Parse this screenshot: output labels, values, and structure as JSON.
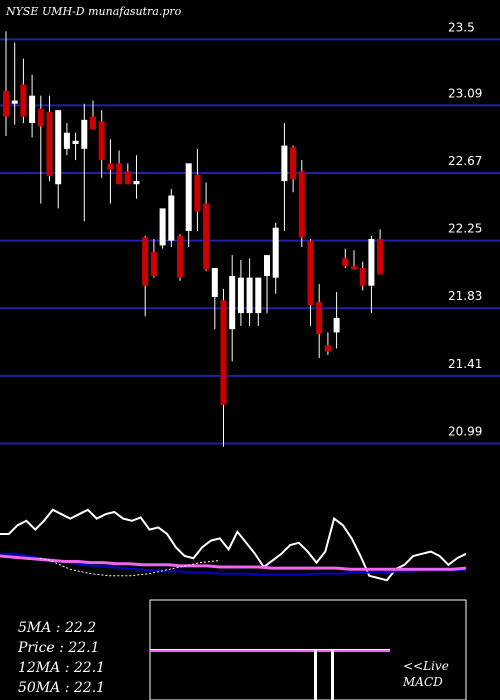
{
  "chart_data": [
    {
      "type": "candlestick",
      "title": "NYSE UMH-D munafasutra.pro",
      "ylim": [
        20.9,
        23.62
      ],
      "y_ticks": [
        "23.5",
        "23.09",
        "22.67",
        "22.25",
        "21.83",
        "21.41",
        "20.99"
      ],
      "grid": true,
      "colors": {
        "up": "#ffffff",
        "down": "#cc0000",
        "grid": "#2020a8",
        "background": "#000000"
      },
      "candles": [
        {
          "open": 23.18,
          "high": 23.55,
          "low": 22.9,
          "close": 23.02
        },
        {
          "open": 23.1,
          "high": 23.48,
          "low": 22.97,
          "close": 23.12
        },
        {
          "open": 23.22,
          "high": 23.38,
          "low": 22.98,
          "close": 23.02
        },
        {
          "open": 22.98,
          "high": 23.28,
          "low": 22.89,
          "close": 23.15
        },
        {
          "open": 23.07,
          "high": 23.15,
          "low": 22.48,
          "close": 22.96
        },
        {
          "open": 23.05,
          "high": 23.15,
          "low": 22.62,
          "close": 22.65
        },
        {
          "open": 22.6,
          "high": 23.06,
          "low": 22.45,
          "close": 23.06
        },
        {
          "open": 22.82,
          "high": 22.98,
          "low": 22.78,
          "close": 22.92
        },
        {
          "open": 22.85,
          "high": 22.92,
          "low": 22.75,
          "close": 22.87
        },
        {
          "open": 22.82,
          "high": 23.1,
          "low": 22.37,
          "close": 23.0
        },
        {
          "open": 23.02,
          "high": 23.12,
          "low": 22.94,
          "close": 22.94
        },
        {
          "open": 22.99,
          "high": 23.06,
          "low": 22.64,
          "close": 22.75
        },
        {
          "open": 22.73,
          "high": 22.88,
          "low": 22.48,
          "close": 22.69
        },
        {
          "open": 22.73,
          "high": 22.81,
          "low": 22.61,
          "close": 22.6
        },
        {
          "open": 22.68,
          "high": 22.73,
          "low": 22.6,
          "close": 22.6
        },
        {
          "open": 22.6,
          "high": 22.78,
          "low": 22.51,
          "close": 22.62
        },
        {
          "open": 22.27,
          "high": 22.28,
          "low": 21.78,
          "close": 21.97
        },
        {
          "open": 22.18,
          "high": 22.26,
          "low": 22.02,
          "close": 22.03
        },
        {
          "open": 22.22,
          "high": 22.45,
          "low": 22.2,
          "close": 22.45
        },
        {
          "open": 22.25,
          "high": 22.57,
          "low": 22.21,
          "close": 22.53
        },
        {
          "open": 22.28,
          "high": 22.29,
          "low": 22.0,
          "close": 22.02
        },
        {
          "open": 22.31,
          "high": 22.72,
          "low": 22.21,
          "close": 22.73
        },
        {
          "open": 22.66,
          "high": 22.82,
          "low": 22.31,
          "close": 22.43
        },
        {
          "open": 22.48,
          "high": 22.61,
          "low": 22.06,
          "close": 22.07
        },
        {
          "open": 21.9,
          "high": 22.08,
          "low": 21.7,
          "close": 22.08
        },
        {
          "open": 21.88,
          "high": 21.95,
          "low": 20.97,
          "close": 21.23
        },
        {
          "open": 21.7,
          "high": 22.16,
          "low": 21.5,
          "close": 22.03
        },
        {
          "open": 21.8,
          "high": 22.13,
          "low": 21.72,
          "close": 22.02
        },
        {
          "open": 21.8,
          "high": 22.14,
          "low": 21.72,
          "close": 22.02
        },
        {
          "open": 21.8,
          "high": 22.02,
          "low": 21.72,
          "close": 22.02
        },
        {
          "open": 22.03,
          "high": 22.16,
          "low": 21.8,
          "close": 22.16
        },
        {
          "open": 22.02,
          "high": 22.36,
          "low": 21.92,
          "close": 22.33
        },
        {
          "open": 22.62,
          "high": 22.98,
          "low": 22.31,
          "close": 22.84
        },
        {
          "open": 22.83,
          "high": 22.84,
          "low": 22.55,
          "close": 22.63
        },
        {
          "open": 22.68,
          "high": 22.75,
          "low": 22.21,
          "close": 22.27
        },
        {
          "open": 22.25,
          "high": 22.26,
          "low": 21.72,
          "close": 21.85
        },
        {
          "open": 21.87,
          "high": 21.98,
          "low": 21.52,
          "close": 21.67
        },
        {
          "open": 21.6,
          "high": 21.68,
          "low": 21.54,
          "close": 21.56
        },
        {
          "open": 21.68,
          "high": 21.93,
          "low": 21.58,
          "close": 21.77
        },
        {
          "open": 22.14,
          "high": 22.2,
          "low": 22.08,
          "close": 22.09
        },
        {
          "open": 22.09,
          "high": 22.19,
          "low": 22.07,
          "close": 22.07
        },
        {
          "open": 22.08,
          "high": 22.12,
          "low": 21.94,
          "close": 21.97
        },
        {
          "open": 21.97,
          "high": 22.28,
          "low": 21.8,
          "close": 22.26
        },
        {
          "open": 22.26,
          "high": 22.32,
          "low": 22.04,
          "close": 22.04
        }
      ]
    },
    {
      "type": "line",
      "series": [
        {
          "color": "#ffffff",
          "values": [
            40,
            40,
            32,
            28,
            36,
            28,
            18,
            22,
            26,
            22,
            18,
            26,
            22,
            20,
            26,
            28,
            25,
            36,
            34,
            40,
            52,
            60,
            62,
            52,
            46,
            44,
            54,
            38,
            48,
            58,
            70,
            64,
            58,
            50,
            48,
            56,
            66,
            56,
            26,
            32,
            44,
            60,
            78,
            80,
            82,
            72,
            68,
            60,
            58,
            56,
            60,
            68,
            62,
            58
          ]
        },
        {
          "color": "#0000cc",
          "values": [
            58,
            58,
            60,
            62,
            64,
            66,
            68,
            69,
            70,
            71,
            72,
            73,
            74,
            74,
            75,
            75,
            76,
            76,
            76,
            77,
            77,
            77,
            77,
            76,
            76,
            76,
            75,
            75,
            75,
            74,
            74,
            73,
            73,
            73,
            73
          ]
        },
        {
          "color": "#ee66ee",
          "values": [
            60,
            61,
            62,
            63,
            64,
            65,
            65,
            66,
            66,
            67,
            67,
            68,
            68,
            68,
            69,
            69,
            69,
            70,
            70,
            70,
            70,
            71,
            71,
            71,
            71,
            71,
            71,
            72,
            72,
            72,
            72,
            72,
            72,
            72,
            72,
            72,
            71
          ]
        },
        {
          "color": "#ffffff",
          "values": [
            62,
            64,
            68,
            72,
            74,
            76,
            77,
            78,
            78,
            78,
            77,
            76,
            74,
            72,
            70,
            68,
            66,
            65,
            64
          ]
        }
      ]
    },
    {
      "type": "line",
      "series": [
        {
          "color": "#ffffff",
          "values": [
            50,
            50,
            50,
            50,
            50,
            50,
            50,
            50,
            50,
            50,
            50,
            50,
            50,
            50,
            50,
            50,
            50,
            50,
            50,
            50,
            50,
            50,
            50,
            50,
            50,
            50,
            50,
            50,
            50,
            50,
            50,
            50,
            50,
            50,
            50,
            50,
            50,
            50,
            50,
            50
          ]
        },
        {
          "color": "#ee66ee",
          "values": [
            50,
            50,
            50,
            50,
            50,
            50,
            50,
            50,
            50,
            50,
            50,
            50,
            50,
            50,
            50,
            50,
            50,
            50,
            50,
            50,
            50,
            50,
            50,
            50,
            50,
            50,
            50,
            50,
            50,
            50,
            50,
            50,
            50,
            50,
            50,
            50,
            50,
            50,
            50,
            50
          ]
        }
      ]
    }
  ],
  "stats": [
    {
      "label": "5MA",
      "value": "22.2"
    },
    {
      "label": "Price",
      "value": "22.1"
    },
    {
      "label": "12MA",
      "value": "22.1"
    },
    {
      "label": "50MA",
      "value": "22.1"
    }
  ],
  "macd_label": [
    "<<Live",
    "MACD"
  ]
}
